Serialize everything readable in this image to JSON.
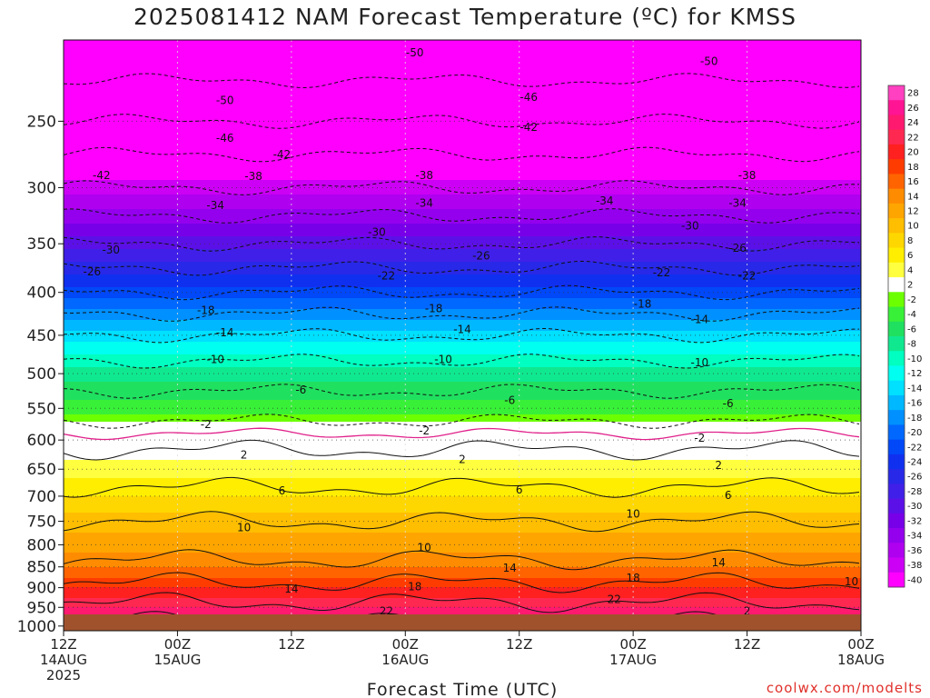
{
  "page": {
    "title": "2025081412 NAM Forecast Temperature (ºC) for KMSS",
    "credit": "coolwx.com/modelts"
  },
  "chart_data": {
    "type": "heatmap",
    "title": "2025081412 NAM Forecast Temperature (ºC) for KMSS",
    "xlabel": "Forecast Time (UTC)",
    "ylabel": "",
    "x_ticks": [
      {
        "hour": 0,
        "line1": "12Z",
        "line2": "14AUG",
        "line3": "2025"
      },
      {
        "hour": 12,
        "line1": "00Z",
        "line2": "15AUG",
        "line3": ""
      },
      {
        "hour": 24,
        "line1": "12Z",
        "line2": "",
        "line3": ""
      },
      {
        "hour": 36,
        "line1": "00Z",
        "line2": "16AUG",
        "line3": ""
      },
      {
        "hour": 48,
        "line1": "12Z",
        "line2": "",
        "line3": ""
      },
      {
        "hour": 60,
        "line1": "00Z",
        "line2": "17AUG",
        "line3": ""
      },
      {
        "hour": 72,
        "line1": "12Z",
        "line2": "",
        "line3": ""
      },
      {
        "hour": 84,
        "line1": "00Z",
        "line2": "18AUG",
        "line3": ""
      }
    ],
    "xlim_hours": [
      0,
      84
    ],
    "y_ticks": [
      250,
      300,
      350,
      400,
      450,
      500,
      550,
      600,
      650,
      700,
      750,
      800,
      850,
      900,
      950,
      1000
    ],
    "ylim_hPa": [
      200,
      1013
    ],
    "y_scale": "log-pressure",
    "isotherm_profile": [
      {
        "p": 200,
        "t": -54
      },
      {
        "p": 250,
        "t": -46
      },
      {
        "p": 300,
        "t": -38
      },
      {
        "p": 350,
        "t": -30
      },
      {
        "p": 400,
        "t": -22
      },
      {
        "p": 450,
        "t": -14
      },
      {
        "p": 500,
        "t": -8
      },
      {
        "p": 550,
        "t": -4
      },
      {
        "p": 600,
        "t": 1
      },
      {
        "p": 650,
        "t": 4
      },
      {
        "p": 700,
        "t": 7
      },
      {
        "p": 750,
        "t": 10
      },
      {
        "p": 800,
        "t": 12
      },
      {
        "p": 850,
        "t": 15
      },
      {
        "p": 900,
        "t": 19
      },
      {
        "p": 950,
        "t": 23
      },
      {
        "p": 1000,
        "t": 27
      }
    ],
    "contour_labels": [
      {
        "v": "-50",
        "hour": 37,
        "p": 207
      },
      {
        "v": "-50",
        "hour": 68,
        "p": 212
      },
      {
        "v": "-50",
        "hour": 17,
        "p": 236
      },
      {
        "v": "-46",
        "hour": 49,
        "p": 234
      },
      {
        "v": "-46",
        "hour": 17,
        "p": 262
      },
      {
        "v": "-42",
        "hour": 49,
        "p": 254
      },
      {
        "v": "-42",
        "hour": 23,
        "p": 274
      },
      {
        "v": "-42",
        "hour": 4,
        "p": 290
      },
      {
        "v": "-38",
        "hour": 20,
        "p": 291
      },
      {
        "v": "-38",
        "hour": 38,
        "p": 290
      },
      {
        "v": "-38",
        "hour": 72,
        "p": 290
      },
      {
        "v": "-34",
        "hour": 16,
        "p": 315
      },
      {
        "v": "-34",
        "hour": 38,
        "p": 313
      },
      {
        "v": "-34",
        "hour": 57,
        "p": 311
      },
      {
        "v": "-34",
        "hour": 71,
        "p": 313
      },
      {
        "v": "-30",
        "hour": 33,
        "p": 339
      },
      {
        "v": "-30",
        "hour": 66,
        "p": 333
      },
      {
        "v": "-30",
        "hour": 5,
        "p": 356
      },
      {
        "v": "-26",
        "hour": 44,
        "p": 362
      },
      {
        "v": "-26",
        "hour": 71,
        "p": 354
      },
      {
        "v": "-26",
        "hour": 3,
        "p": 378
      },
      {
        "v": "-22",
        "hour": 34,
        "p": 382
      },
      {
        "v": "-22",
        "hour": 63,
        "p": 379
      },
      {
        "v": "-22",
        "hour": 72,
        "p": 382
      },
      {
        "v": "-18",
        "hour": 15,
        "p": 420
      },
      {
        "v": "-18",
        "hour": 39,
        "p": 418
      },
      {
        "v": "-18",
        "hour": 61,
        "p": 413
      },
      {
        "v": "-14",
        "hour": 17,
        "p": 447
      },
      {
        "v": "-14",
        "hour": 42,
        "p": 443
      },
      {
        "v": "-14",
        "hour": 67,
        "p": 431
      },
      {
        "v": "-10",
        "hour": 16,
        "p": 481
      },
      {
        "v": "-10",
        "hour": 40,
        "p": 481
      },
      {
        "v": "-10",
        "hour": 67,
        "p": 485
      },
      {
        "v": "-6",
        "hour": 25,
        "p": 523
      },
      {
        "v": "-6",
        "hour": 47,
        "p": 538
      },
      {
        "v": "-6",
        "hour": 70,
        "p": 543
      },
      {
        "v": "-2",
        "hour": 15,
        "p": 575
      },
      {
        "v": "-2",
        "hour": 38,
        "p": 585
      },
      {
        "v": "-2",
        "hour": 67,
        "p": 597
      },
      {
        "v": "2",
        "hour": 19,
        "p": 625
      },
      {
        "v": "2",
        "hour": 42,
        "p": 633
      },
      {
        "v": "2",
        "hour": 69,
        "p": 643
      },
      {
        "v": "6",
        "hour": 23,
        "p": 690
      },
      {
        "v": "6",
        "hour": 48,
        "p": 688
      },
      {
        "v": "6",
        "hour": 70,
        "p": 698
      },
      {
        "v": "10",
        "hour": 19,
        "p": 763
      },
      {
        "v": "10",
        "hour": 38,
        "p": 806
      },
      {
        "v": "10",
        "hour": 60,
        "p": 735
      },
      {
        "v": "10",
        "hour": 83,
        "p": 885
      },
      {
        "v": "14",
        "hour": 47,
        "p": 853
      },
      {
        "v": "14",
        "hour": 69,
        "p": 840
      },
      {
        "v": "14",
        "hour": 24,
        "p": 903
      },
      {
        "v": "18",
        "hour": 37,
        "p": 897
      },
      {
        "v": "18",
        "hour": 60,
        "p": 877
      },
      {
        "v": "22",
        "hour": 34,
        "p": 960
      },
      {
        "v": "22",
        "hour": 58,
        "p": 930
      },
      {
        "v": "2",
        "hour": 72,
        "p": 960
      }
    ],
    "colorbar": {
      "labels": [
        "28",
        "26",
        "24",
        "22",
        "20",
        "18",
        "16",
        "14",
        "12",
        "10",
        "8",
        "6",
        "4",
        "2",
        "-2",
        "-4",
        "-6",
        "-8",
        "-10",
        "-12",
        "-14",
        "-16",
        "-18",
        "-20",
        "-22",
        "-24",
        "-26",
        "-28",
        "-30",
        "-32",
        "-34",
        "-36",
        "-38",
        "-40"
      ],
      "colors": [
        "#ff40c0",
        "#ff1493",
        "#ff1a70",
        "#ff2850",
        "#ff2020",
        "#ff3c00",
        "#ff6400",
        "#ff8c00",
        "#ffa500",
        "#ffbe00",
        "#ffd700",
        "#ffee00",
        "#ffff40",
        "#ffffff",
        "#6cff00",
        "#38f038",
        "#20e060",
        "#10e890",
        "#00ffc0",
        "#00fff0",
        "#00e0ff",
        "#00b8ff",
        "#0090ff",
        "#0068ff",
        "#0048f8",
        "#1030f0",
        "#2828e8",
        "#4020e8",
        "#5c10e8",
        "#7800e8",
        "#9400ee",
        "#b000f0",
        "#cc00f4",
        "#ff00ff"
      ]
    },
    "surface_band_color": "#a0522d",
    "grid": "dotted"
  }
}
